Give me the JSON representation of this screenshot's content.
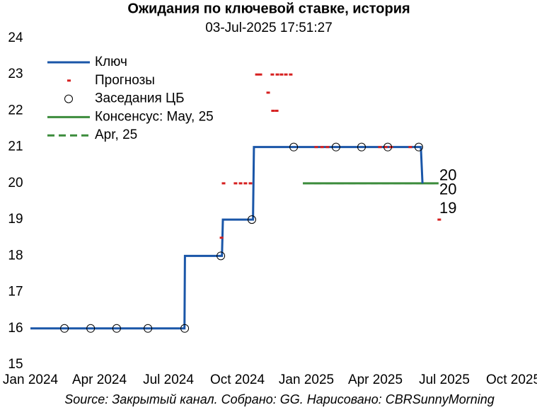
{
  "chart_data": {
    "type": "line",
    "title": "Ожидания по ключевой ставке, история",
    "subtitle": "03-Jul-2025 17:51:27",
    "source": "Source: Закрытый канал. Собрано: GG. Нарисовано: CBRSunnyMorning",
    "xlim": [
      0,
      21
    ],
    "xticks": [
      {
        "value": 0,
        "label": "Jan 2024"
      },
      {
        "value": 3,
        "label": "Apr 2024"
      },
      {
        "value": 6,
        "label": "Jul 2024"
      },
      {
        "value": 9,
        "label": "Oct 2024"
      },
      {
        "value": 12,
        "label": "Jan 2025"
      },
      {
        "value": 15,
        "label": "Apr 2025"
      },
      {
        "value": 18,
        "label": "Jul 2025"
      },
      {
        "value": 21,
        "label": "Oct 2025"
      }
    ],
    "ylim": [
      15,
      24
    ],
    "yticks": [
      15,
      16,
      17,
      18,
      19,
      20,
      21,
      22,
      23,
      24
    ],
    "series": [
      {
        "name": "Ключ",
        "kind": "line",
        "color": "#1a56a8",
        "x": [
          0,
          6.7,
          6.72,
          8.33,
          8.37,
          9.68,
          9.72,
          16.98,
          17.05
        ],
        "values": [
          16,
          16,
          18,
          18,
          19,
          19,
          21,
          21,
          20
        ]
      },
      {
        "name": "Прогнозы",
        "kind": "points",
        "color": "#d62020",
        "x": [
          9.85,
          10.0,
          10.52,
          10.74,
          10.92,
          11.11,
          11.32,
          10.34,
          10.55,
          10.71,
          8.4,
          8.92,
          9.14,
          9.35,
          9.57,
          8.31,
          12.43,
          12.68,
          12.92,
          15.2,
          15.45,
          15.69,
          16.52,
          17.78
        ],
        "values": [
          23,
          23,
          23,
          23,
          23,
          23,
          23,
          22.5,
          22,
          22,
          20,
          20,
          20,
          20,
          20,
          18.5,
          21,
          21,
          21,
          21,
          21,
          21,
          21,
          19
        ]
      },
      {
        "name": "Заседания ЦБ",
        "kind": "circles",
        "color": "#000000",
        "x": [
          1.48,
          2.62,
          3.75,
          5.11,
          6.71,
          8.28,
          9.63,
          11.45,
          13.29,
          14.4,
          15.54,
          16.89
        ],
        "values": [
          16,
          16,
          16,
          16,
          16,
          18,
          19,
          21,
          21,
          21,
          21,
          21
        ]
      },
      {
        "name": "Консенсус: May, 25",
        "kind": "line",
        "color": "#3c8c3c",
        "x": [
          11.85,
          17.75
        ],
        "values": [
          20,
          20
        ]
      },
      {
        "name": "Apr, 25",
        "kind": "line",
        "dashed": true,
        "color": "#3c8c3c",
        "x": [
          11.85,
          17.75
        ],
        "values": [
          20,
          20
        ]
      }
    ],
    "annotations": [
      {
        "label": "20",
        "value": 20,
        "color": "#3c8c3c"
      },
      {
        "label": "20",
        "value": 20,
        "color": "#3c8c3c"
      },
      {
        "label": "19",
        "value": 19,
        "color": "#d62020"
      }
    ]
  }
}
